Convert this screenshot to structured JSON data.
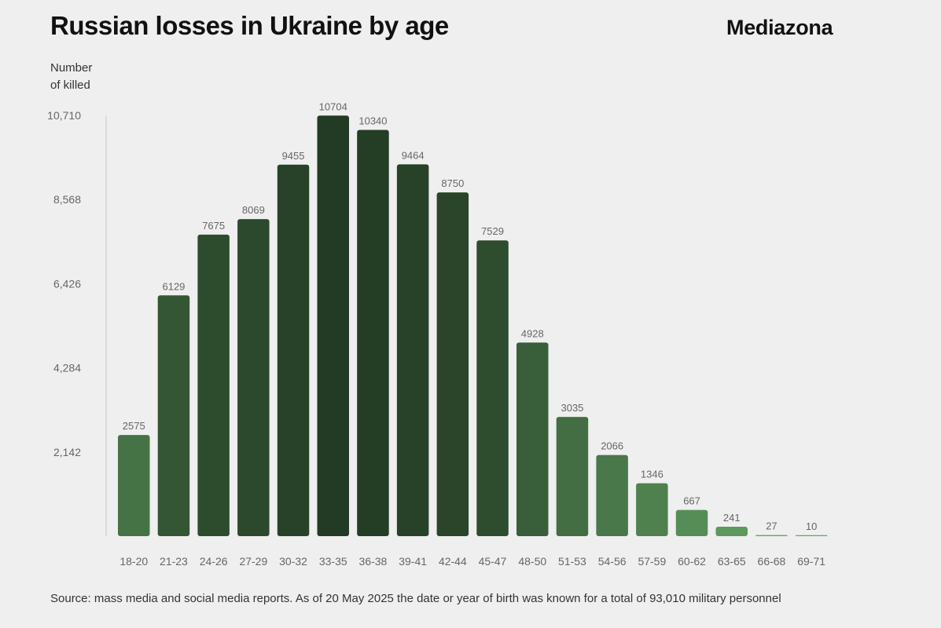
{
  "header": {
    "title": "Russian losses in Ukraine by age",
    "brand": "Mediazona"
  },
  "chart_data": {
    "type": "bar",
    "title": "Russian losses in Ukraine by age",
    "ylabel_line1": "Number",
    "ylabel_line2": "of killed",
    "xlabel": "",
    "ylim": [
      0,
      10710
    ],
    "yticks": [
      2142,
      4284,
      6426,
      8568,
      10710
    ],
    "ytick_labels": [
      "2,142",
      "4,284",
      "6,426",
      "8,568",
      "10,710"
    ],
    "categories": [
      "18-20",
      "21-23",
      "24-26",
      "27-29",
      "30-32",
      "33-35",
      "36-38",
      "39-41",
      "42-44",
      "45-47",
      "48-50",
      "51-53",
      "54-56",
      "57-59",
      "60-62",
      "63-65",
      "66-68",
      "69-71"
    ],
    "values": [
      2575,
      6129,
      7675,
      8069,
      9455,
      10704,
      10340,
      9464,
      8750,
      7529,
      4928,
      3035,
      2066,
      1346,
      667,
      241,
      27,
      10
    ],
    "grid": false,
    "colors": {
      "bar_dark": "#233b24",
      "bar_light": "#67a867",
      "axis": "#c8c8c8",
      "label": "#666666"
    }
  },
  "footer": {
    "source": "Source: mass media and social media reports. As of 20 May 2025 the date or year of birth was known for a total of 93,010 military personnel"
  }
}
